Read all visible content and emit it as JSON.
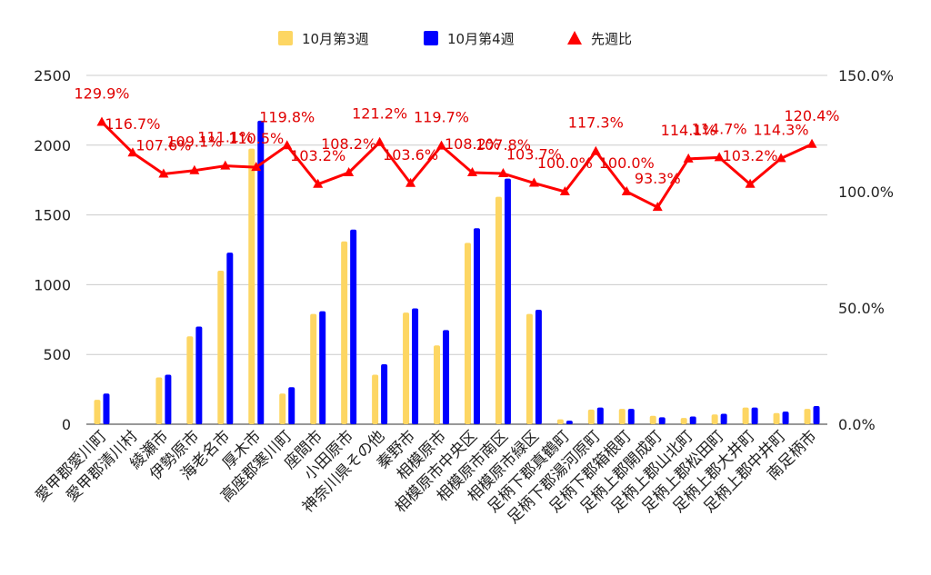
{
  "chart_data": {
    "type": "bar",
    "categories": [
      "愛甲郡愛川町",
      "愛甲郡清川村",
      "綾瀬市",
      "伊勢原市",
      "海老名市",
      "厚木市",
      "高座郡寒川町",
      "座間市",
      "小田原市",
      "神奈川県その他",
      "秦野市",
      "相模原市",
      "相模原市中央区",
      "相模原市南区",
      "相模原市緑区",
      "足柄下郡真鶴町",
      "足柄下郡湯河原町",
      "足柄下郡箱根町",
      "足柄上郡開成町",
      "足柄上郡山北町",
      "足柄上郡松田町",
      "足柄上郡大井町",
      "足柄上郡中井町",
      "南足柄市"
    ],
    "series": [
      {
        "name": "10月第3週",
        "axis": "left",
        "color": "#fdd663",
        "values": [
          175,
          0,
          335,
          630,
          1100,
          1975,
          220,
          790,
          1310,
          355,
          800,
          565,
          1300,
          1630,
          790,
          35,
          105,
          110,
          60,
          45,
          70,
          120,
          80,
          110
        ]
      },
      {
        "name": "10月第4週",
        "axis": "left",
        "color": "#0000ff",
        "values": [
          220,
          0,
          355,
          700,
          1230,
          2175,
          265,
          810,
          1395,
          430,
          830,
          675,
          1405,
          1760,
          820,
          25,
          120,
          110,
          50,
          55,
          75,
          120,
          90,
          130
        ]
      },
      {
        "name": "先週比",
        "axis": "right",
        "type": "line",
        "color": "#ff0000",
        "values": [
          129.9,
          116.7,
          107.6,
          109.1,
          111.1,
          110.5,
          119.8,
          103.2,
          108.2,
          121.2,
          103.6,
          119.7,
          108.2,
          107.8,
          103.7,
          100.0,
          117.3,
          100.0,
          93.3,
          114.1,
          114.7,
          103.2,
          114.3,
          120.4
        ]
      }
    ],
    "data_labels": [
      "129.9%",
      "116.7%",
      "107.6%",
      "109.1%",
      "111.1%",
      "110.5%",
      "119.8%",
      "103.2%",
      "108.2%",
      "121.2%",
      "103.6%",
      "119.7%",
      "108.2%",
      "107.8%",
      "103.7%",
      "100.0%",
      "117.3%",
      "100.0%",
      "93.3%",
      "114.1%",
      "114.7%",
      "103.2%",
      "114.3%",
      "120.4%"
    ],
    "y_left": {
      "min": 0,
      "max": 2500,
      "ticks": [
        "0",
        "500",
        "1000",
        "1500",
        "2000",
        "2500"
      ]
    },
    "y_right": {
      "min": 0,
      "max": 150,
      "ticks": [
        "0.0%",
        "50.0%",
        "100.0%",
        "150.0%"
      ]
    },
    "grid": true,
    "legend": "top",
    "title": "",
    "xlabel": "",
    "ylabel": ""
  }
}
